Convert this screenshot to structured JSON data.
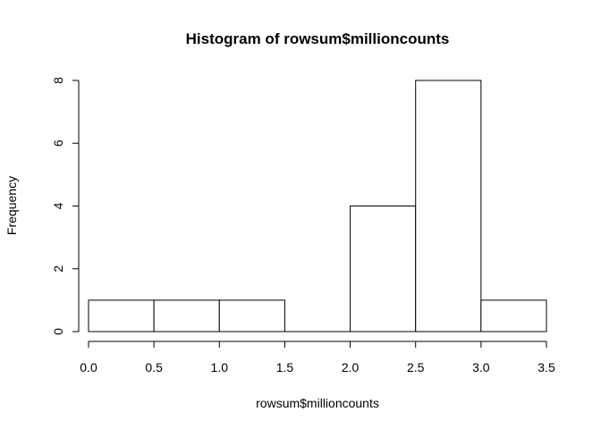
{
  "chart_data": {
    "type": "bar",
    "title": "Histogram of rowsum$millioncounts",
    "xlabel": "rowsum$millioncounts",
    "ylabel": "Frequency",
    "bins": [
      {
        "from": 0.0,
        "to": 0.5,
        "count": 1
      },
      {
        "from": 0.5,
        "to": 1.0,
        "count": 1
      },
      {
        "from": 1.0,
        "to": 1.5,
        "count": 1
      },
      {
        "from": 1.5,
        "to": 2.0,
        "count": 0
      },
      {
        "from": 2.0,
        "to": 2.5,
        "count": 4
      },
      {
        "from": 2.5,
        "to": 3.0,
        "count": 8
      },
      {
        "from": 3.0,
        "to": 3.5,
        "count": 1
      }
    ],
    "xlim": [
      0.0,
      3.5
    ],
    "ylim": [
      0,
      8
    ],
    "x_ticks": [
      "0.0",
      "0.5",
      "1.0",
      "1.5",
      "2.0",
      "2.5",
      "3.0",
      "3.5"
    ],
    "y_ticks": [
      "0",
      "2",
      "4",
      "6",
      "8"
    ],
    "grid": false,
    "bar_fill": "#ffffff",
    "bar_stroke": "#000000"
  }
}
